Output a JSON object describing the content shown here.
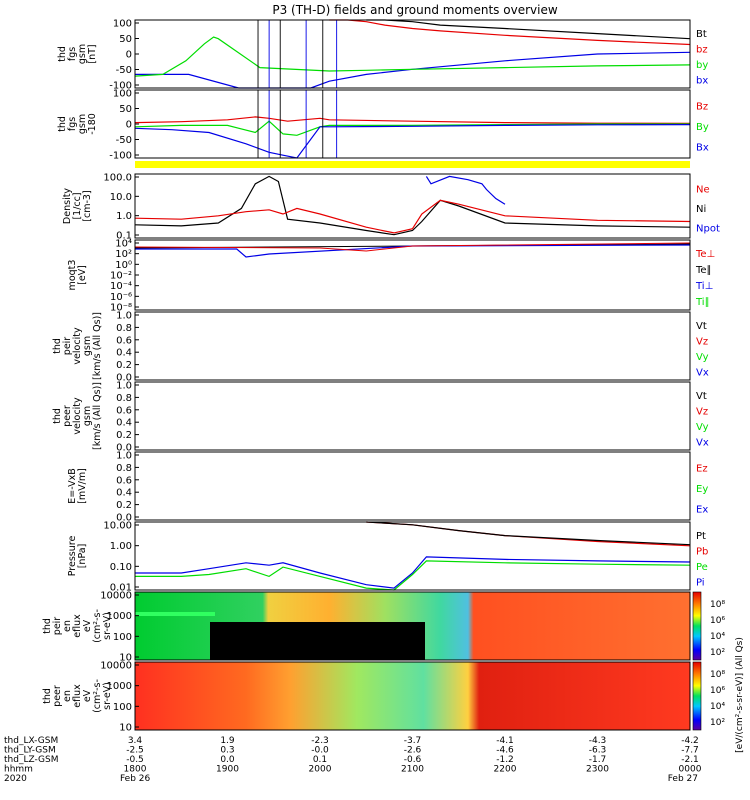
{
  "title": "P3 (TH-D) fields and ground moments overview",
  "colors": {
    "black": "#000000",
    "red": "#e60000",
    "green": "#00dd00",
    "blue": "#0000e6",
    "yellow": "#ffff00"
  },
  "chart_data": [
    {
      "type": "line",
      "ylabel": [
        "thd",
        "fgs",
        "gsm",
        "[nT]"
      ],
      "yticks": [
        "100",
        "50",
        "0",
        "-50",
        "-100"
      ],
      "ylim": [
        -100,
        100
      ],
      "legend": [
        {
          "text": "Bt",
          "color": "black"
        },
        {
          "text": "bz",
          "color": "red"
        },
        {
          "text": "by",
          "color": "green"
        },
        {
          "text": "bx",
          "color": "blue"
        }
      ],
      "series": [
        {
          "legend": "bx",
          "color": "blue",
          "x": [
            1800,
            1858,
            1912,
            1935,
            1950,
            1990,
            2010,
            2050,
            2100,
            2200,
            2300,
            2400
          ],
          "y": [
            -60,
            -60,
            -100,
            -100,
            -100,
            -100,
            -80,
            -60,
            -45,
            -20,
            0,
            5
          ]
        },
        {
          "legend": "by",
          "color": "green",
          "x": [
            1800,
            1830,
            1855,
            1875,
            1885,
            1890,
            1935,
            2010,
            2050,
            2100,
            2200,
            2300,
            2400
          ],
          "y": [
            -65,
            -60,
            -20,
            30,
            50,
            45,
            -40,
            -50,
            -48,
            -45,
            -40,
            -35,
            -32
          ]
        },
        {
          "legend": "bz",
          "color": "red",
          "x": [
            2010,
            2030,
            2050,
            2070,
            2100,
            2130,
            2200,
            2300,
            2400
          ],
          "y": [
            120,
            105,
            95,
            85,
            75,
            68,
            55,
            40,
            28
          ]
        },
        {
          "legend": "Bt",
          "color": "black",
          "x": [
            2050,
            2070,
            2100,
            2130,
            2200,
            2300,
            2400
          ],
          "y": [
            120,
            110,
            95,
            85,
            75,
            60,
            45
          ]
        }
      ]
    },
    {
      "type": "line",
      "ylabel": [
        "thd",
        "fgs",
        "gsm",
        "-180"
      ],
      "yticks": [
        "100",
        "50",
        "0",
        "-50",
        "-100"
      ],
      "ylim": [
        -120,
        120
      ],
      "legend": [
        {
          "text": "Bz",
          "color": "red"
        },
        {
          "text": "By",
          "color": "green"
        },
        {
          "text": "Bx",
          "color": "blue"
        }
      ],
      "series": [
        {
          "legend": "Bz",
          "color": "red",
          "x": [
            1800,
            1850,
            1900,
            1930,
            1945,
            1965,
            2000,
            2010,
            2100,
            2200,
            2300,
            2400
          ],
          "y": [
            5,
            8,
            15,
            25,
            20,
            10,
            20,
            15,
            10,
            5,
            3,
            2
          ]
        },
        {
          "legend": "By",
          "color": "green",
          "x": [
            1800,
            1850,
            1900,
            1930,
            1945,
            1960,
            1975,
            2000,
            2010,
            2100,
            2200,
            2300,
            2400
          ],
          "y": [
            -10,
            -5,
            -5,
            -30,
            10,
            -35,
            -40,
            -10,
            -5,
            -5,
            -2,
            0,
            0
          ]
        },
        {
          "legend": "Bx",
          "color": "blue",
          "x": [
            1800,
            1840,
            1880,
            1920,
            1945,
            1960,
            1975,
            2000,
            2010,
            2100,
            2200,
            2300,
            2400
          ],
          "y": [
            -15,
            -20,
            -30,
            -70,
            -100,
            -110,
            -120,
            -10,
            -10,
            -8,
            -5,
            -3,
            -2
          ]
        }
      ]
    },
    {
      "type": "line",
      "yscale": "log",
      "ylabel": [
        "Density",
        "[1/cc]",
        "[cm-3]"
      ],
      "yticks": [
        "100.0",
        "10.0",
        "1.0",
        "0.1"
      ],
      "ylim": [
        0.08,
        200
      ],
      "legend": [
        {
          "text": "Ne",
          "color": "red"
        },
        {
          "text": "Ni",
          "color": "black"
        },
        {
          "text": "Npot",
          "color": "blue"
        }
      ],
      "series": [
        {
          "legend": "Ni",
          "color": "black",
          "x": [
            1800,
            1850,
            1890,
            1915,
            1930,
            1945,
            1955,
            1965,
            2000,
            2050,
            2080,
            2100,
            2110,
            2130,
            2150,
            2200,
            2300,
            2400
          ],
          "y": [
            0.4,
            0.35,
            0.5,
            3,
            60,
            150,
            80,
            0.8,
            0.5,
            0.2,
            0.12,
            0.2,
            0.6,
            8,
            4,
            0.5,
            0.35,
            0.3
          ]
        },
        {
          "legend": "Ne",
          "color": "red",
          "x": [
            1800,
            1850,
            1890,
            1920,
            1945,
            1960,
            1975,
            2000,
            2050,
            2080,
            2100,
            2110,
            2130,
            2150,
            2200,
            2300,
            2400
          ],
          "y": [
            0.9,
            0.8,
            1.2,
            2,
            2.5,
            1.5,
            3,
            1.5,
            0.3,
            0.15,
            0.25,
            1.5,
            8,
            5,
            1.2,
            0.7,
            0.6
          ]
        },
        {
          "legend": "Npot",
          "color": "blue",
          "x": [
            2115,
            2120,
            2140,
            2160,
            2175,
            2180,
            2190,
            2200
          ],
          "y": [
            150,
            60,
            150,
            100,
            60,
            30,
            10,
            5
          ]
        }
      ]
    },
    {
      "type": "line",
      "yscale": "log",
      "ylabel": [
        "moqt3",
        "[eV]"
      ],
      "yticks": [
        "10⁴",
        "10²",
        "10⁰",
        "10⁻²",
        "10⁻⁴",
        "10⁻⁶",
        "10⁻⁸"
      ],
      "legend": [
        {
          "text": "Te⊥",
          "color": "red"
        },
        {
          "text": "Te∥",
          "color": "black"
        },
        {
          "text": "Ti⊥",
          "color": "blue"
        },
        {
          "text": "Ti∥",
          "color": "green"
        }
      ],
      "series": []
    },
    {
      "type": "line",
      "ylabel": [
        "thd",
        "peir",
        "velocity",
        "gsm",
        "[km/s (All Qs)]"
      ],
      "yticks": [
        "1.0",
        "0.8",
        "0.6",
        "0.4",
        "0.2",
        "0.0"
      ],
      "ylim": [
        0,
        1
      ],
      "legend": [
        {
          "text": "Vt",
          "color": "black"
        },
        {
          "text": "Vz",
          "color": "red"
        },
        {
          "text": "Vy",
          "color": "green"
        },
        {
          "text": "Vx",
          "color": "blue"
        }
      ],
      "series": []
    },
    {
      "type": "line",
      "ylabel": [
        "thd",
        "peer",
        "velocity",
        "gsm",
        "[km/s (All Qs)]"
      ],
      "yticks": [
        "1.0",
        "0.8",
        "0.6",
        "0.4",
        "0.2",
        "0.0"
      ],
      "ylim": [
        0,
        1
      ],
      "legend": [
        {
          "text": "Vt",
          "color": "black"
        },
        {
          "text": "Vz",
          "color": "red"
        },
        {
          "text": "Vy",
          "color": "green"
        },
        {
          "text": "Vx",
          "color": "blue"
        }
      ],
      "series": []
    },
    {
      "type": "line",
      "ylabel": [
        "E=-VxB",
        "[mV/m]"
      ],
      "yticks": [
        "1.0",
        "0.8",
        "0.6",
        "0.4",
        "0.2",
        "0.0"
      ],
      "ylim": [
        0,
        1
      ],
      "legend": [
        {
          "text": "Ez",
          "color": "red"
        },
        {
          "text": "Ey",
          "color": "green"
        },
        {
          "text": "Ex",
          "color": "blue"
        }
      ],
      "series": []
    },
    {
      "type": "line",
      "yscale": "log",
      "ylabel": [
        "Pressure",
        "[nPa]"
      ],
      "yticks": [
        "10.00",
        "1.00",
        "0.10",
        "0.01"
      ],
      "ylim": [
        0.008,
        25
      ],
      "legend": [
        {
          "text": "Pt",
          "color": "black"
        },
        {
          "text": "Pb",
          "color": "red"
        },
        {
          "text": "Pe",
          "color": "green"
        },
        {
          "text": "Pi",
          "color": "blue"
        }
      ],
      "series": [
        {
          "legend": "Pi",
          "color": "blue",
          "x": [
            1800,
            1850,
            1880,
            1920,
            1945,
            1960,
            2000,
            2050,
            2080,
            2100,
            2115,
            2200,
            2300,
            2400
          ],
          "y": [
            0.06,
            0.06,
            0.1,
            0.2,
            0.15,
            0.2,
            0.06,
            0.015,
            0.01,
            0.06,
            0.4,
            0.3,
            0.25,
            0.22
          ]
        },
        {
          "legend": "Pe",
          "color": "green",
          "x": [
            1800,
            1850,
            1880,
            1920,
            1945,
            1960,
            2000,
            2050,
            2080,
            2100,
            2115,
            2200,
            2300,
            2400
          ],
          "y": [
            0.04,
            0.04,
            0.05,
            0.1,
            0.04,
            0.12,
            0.04,
            0.01,
            0.008,
            0.05,
            0.25,
            0.2,
            0.17,
            0.15
          ]
        },
        {
          "legend": "Pb",
          "color": "red",
          "x": [
            2050,
            2100,
            2150,
            2200,
            2300,
            2400
          ],
          "y": [
            25,
            18,
            9,
            5,
            2.5,
            1.5
          ]
        },
        {
          "legend": "Pt",
          "color": "black",
          "x": [
            2050,
            2100,
            2150,
            2200,
            2300,
            2400
          ],
          "y": [
            25,
            18,
            9,
            5,
            2.8,
            1.7
          ]
        }
      ]
    },
    {
      "type": "heatmap",
      "ylabel": [
        "thd",
        "peir",
        "en",
        "eflux",
        "eV",
        "(cm²-s-",
        "sr-eV)"
      ],
      "yticks": [
        "10000",
        "1000",
        "100",
        "10"
      ],
      "colorbar": {
        "ticks": [
          "10⁸",
          "10⁶",
          "10⁴",
          "10²"
        ]
      }
    },
    {
      "type": "heatmap",
      "ylabel": [
        "thd",
        "peer",
        "en",
        "eflux",
        "eV",
        "(cm²-s-",
        "sr-eV)"
      ],
      "yticks": [
        "10000",
        "1000",
        "100",
        "10"
      ],
      "colorbar": {
        "ticks": [
          "10⁸",
          "10⁶",
          "10⁴",
          "10²"
        ]
      }
    }
  ],
  "colorbar_label": "[eV/(cm²-s-sr-eV)] (All Qs)",
  "footer": {
    "rows": [
      {
        "label": "thd_LX-GSM",
        "values": [
          "3.4",
          "1.9",
          "-2.3",
          "-3.7",
          "-4.1",
          "-4.3",
          "-4.2"
        ]
      },
      {
        "label": "thd_LY-GSM",
        "values": [
          "-2.5",
          "0.3",
          "-0.0",
          "-2.6",
          "-4.6",
          "-6.3",
          "-7.7"
        ]
      },
      {
        "label": "thd_LZ-GSM",
        "values": [
          "-0.5",
          "0.0",
          "0.1",
          "-0.6",
          "-1.2",
          "-1.7",
          "-2.1"
        ]
      },
      {
        "label": "hhmm",
        "values": [
          "1800",
          "1900",
          "2000",
          "2100",
          "2200",
          "2300",
          "0000"
        ]
      },
      {
        "label": "2020",
        "values": [
          "Feb 26",
          "",
          "",
          "",
          "",
          "",
          "Feb 27"
        ]
      }
    ]
  }
}
